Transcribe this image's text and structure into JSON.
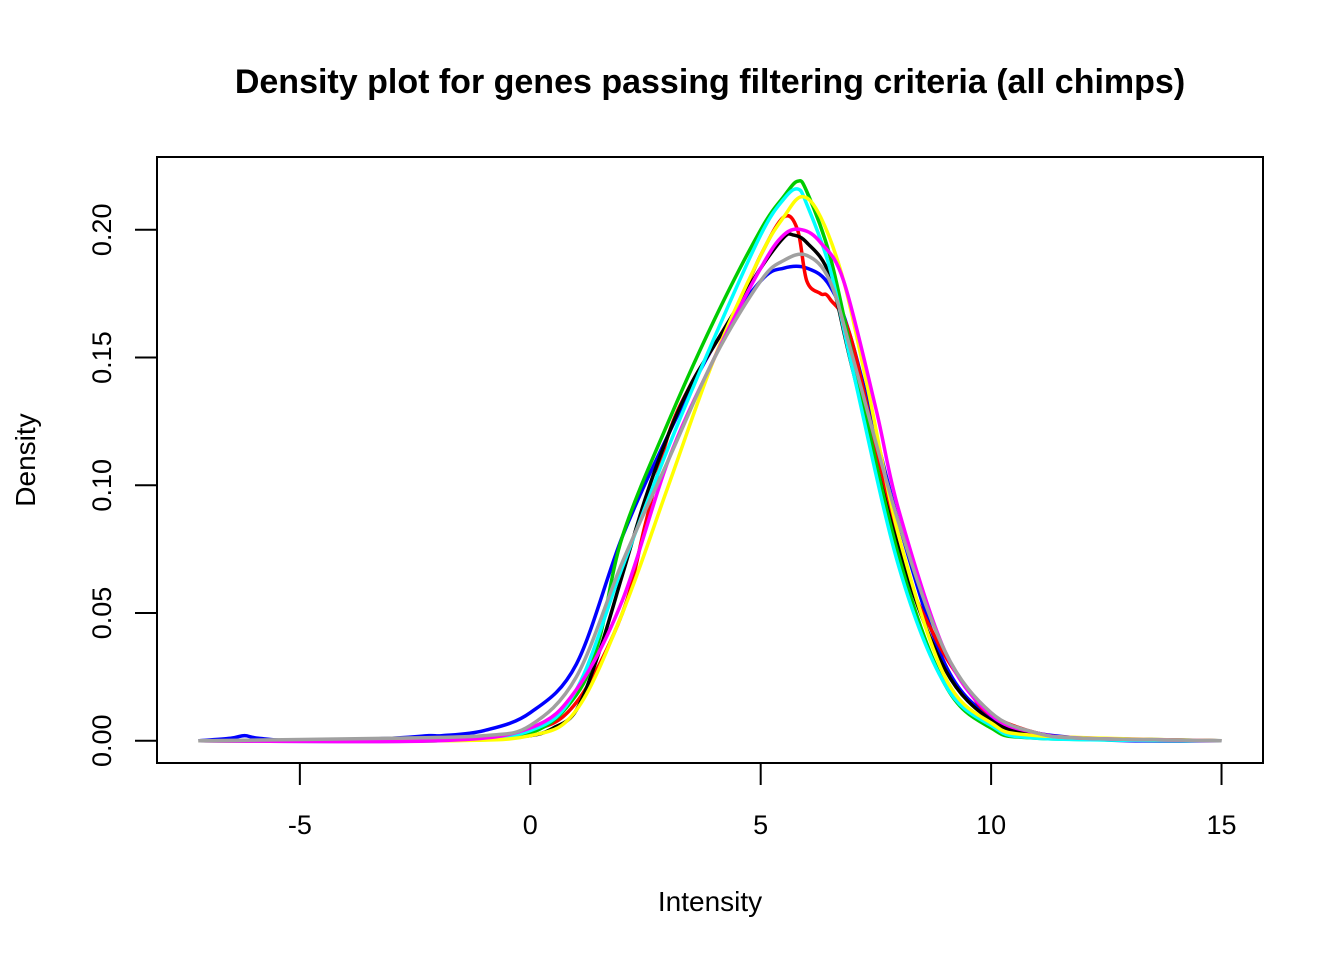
{
  "chart_data": {
    "type": "line",
    "title": "Density plot for genes passing filtering criteria (all chimps)",
    "xlabel": "Intensity",
    "ylabel": "Density",
    "xlim": [
      -8.1,
      15.9
    ],
    "ylim": [
      -0.0087,
      0.2285
    ],
    "x_ticks": [
      -5,
      0,
      5,
      10,
      15
    ],
    "y_ticks": [
      0.0,
      0.05,
      0.1,
      0.15,
      0.2
    ],
    "x_tick_labels": [
      "-5",
      "0",
      "5",
      "10",
      "15"
    ],
    "y_tick_labels": [
      "0.00",
      "0.05",
      "0.10",
      "0.15",
      "0.20"
    ],
    "grid": false,
    "legend": "none",
    "series": [
      {
        "color": "#0000ff",
        "x": [
          -7.2,
          -6.5,
          -6.2,
          -5.9,
          -5,
          -3,
          -2.2,
          -1.9,
          -1,
          0,
          1,
          2,
          3,
          4,
          5,
          5.5,
          6,
          6.5,
          7,
          8,
          9,
          10,
          11,
          12,
          13,
          15
        ],
        "y": [
          0,
          0.001,
          0.002,
          0.001,
          0,
          0.001,
          0.002,
          0.002,
          0.004,
          0.011,
          0.03,
          0.08,
          0.12,
          0.155,
          0.18,
          0.185,
          0.185,
          0.178,
          0.155,
          0.085,
          0.03,
          0.009,
          0.003,
          0.001,
          0,
          0
        ]
      },
      {
        "color": "#ff0000",
        "x": [
          -7.2,
          -4,
          -2,
          0,
          1,
          2,
          2.5,
          3,
          3.5,
          4,
          4.5,
          5,
          5.5,
          5.8,
          6,
          6.3,
          6.5,
          7,
          8,
          8.8,
          9.5,
          10,
          11,
          12,
          15
        ],
        "y": [
          0,
          0,
          0.001,
          0.004,
          0.015,
          0.05,
          0.085,
          0.12,
          0.14,
          0.155,
          0.17,
          0.19,
          0.205,
          0.2,
          0.18,
          0.175,
          0.173,
          0.155,
          0.075,
          0.04,
          0.02,
          0.01,
          0.003,
          0.001,
          0
        ]
      },
      {
        "color": "#000000",
        "x": [
          -7.2,
          -3,
          -1,
          0,
          0.5,
          1,
          1.5,
          2,
          2.5,
          3,
          3.5,
          4,
          4.5,
          5,
          5.5,
          5.7,
          6,
          6.5,
          7,
          8,
          9,
          10,
          11,
          12,
          15
        ],
        "y": [
          0,
          0,
          0.001,
          0.002,
          0.005,
          0.012,
          0.035,
          0.065,
          0.095,
          0.12,
          0.14,
          0.155,
          0.17,
          0.185,
          0.197,
          0.198,
          0.195,
          0.182,
          0.145,
          0.075,
          0.028,
          0.008,
          0.002,
          0.001,
          0
        ]
      },
      {
        "color": "#00cc00",
        "x": [
          -7.2,
          -2,
          0,
          1,
          1.5,
          2,
          3,
          4,
          5,
          5.5,
          5.8,
          6,
          6.5,
          7,
          8,
          9,
          10,
          11,
          15
        ],
        "y": [
          0,
          0,
          0.003,
          0.018,
          0.04,
          0.08,
          0.125,
          0.165,
          0.2,
          0.213,
          0.219,
          0.215,
          0.19,
          0.15,
          0.072,
          0.022,
          0.005,
          0.001,
          0
        ]
      },
      {
        "color": "#00ffff",
        "x": [
          -7.2,
          -2,
          0,
          1,
          2,
          3,
          4,
          5,
          5.5,
          5.8,
          6,
          6.5,
          7,
          8,
          9,
          10,
          11,
          15
        ],
        "y": [
          0,
          0,
          0.004,
          0.02,
          0.068,
          0.115,
          0.158,
          0.198,
          0.212,
          0.216,
          0.21,
          0.185,
          0.145,
          0.068,
          0.022,
          0.006,
          0.001,
          0
        ]
      },
      {
        "color": "#ffff00",
        "x": [
          -7.2,
          -2,
          0,
          1,
          2,
          3,
          4,
          5,
          5.5,
          5.9,
          6.3,
          6.8,
          7.3,
          8,
          9,
          10,
          11,
          15
        ],
        "y": [
          0,
          0,
          0.002,
          0.012,
          0.05,
          0.1,
          0.15,
          0.19,
          0.205,
          0.213,
          0.205,
          0.18,
          0.14,
          0.08,
          0.025,
          0.007,
          0.002,
          0
        ]
      },
      {
        "color": "#ff00ff",
        "x": [
          -7.2,
          -2,
          0,
          1,
          2,
          3,
          4,
          5,
          5.5,
          5.9,
          6.3,
          6.8,
          7.5,
          8,
          9,
          10,
          11,
          12,
          15
        ],
        "y": [
          0,
          0,
          0.005,
          0.02,
          0.055,
          0.11,
          0.15,
          0.185,
          0.198,
          0.2,
          0.195,
          0.18,
          0.13,
          0.09,
          0.035,
          0.01,
          0.003,
          0.001,
          0
        ]
      },
      {
        "color": "#a0a0a0",
        "x": [
          -7.2,
          -3,
          -1,
          0,
          1,
          2,
          3,
          4,
          5,
          5.5,
          6,
          6.5,
          7,
          8,
          9,
          10,
          11,
          12,
          15
        ],
        "y": [
          0,
          0.001,
          0.002,
          0.006,
          0.025,
          0.07,
          0.11,
          0.15,
          0.18,
          0.188,
          0.19,
          0.18,
          0.15,
          0.085,
          0.035,
          0.011,
          0.003,
          0.001,
          0
        ]
      }
    ]
  }
}
